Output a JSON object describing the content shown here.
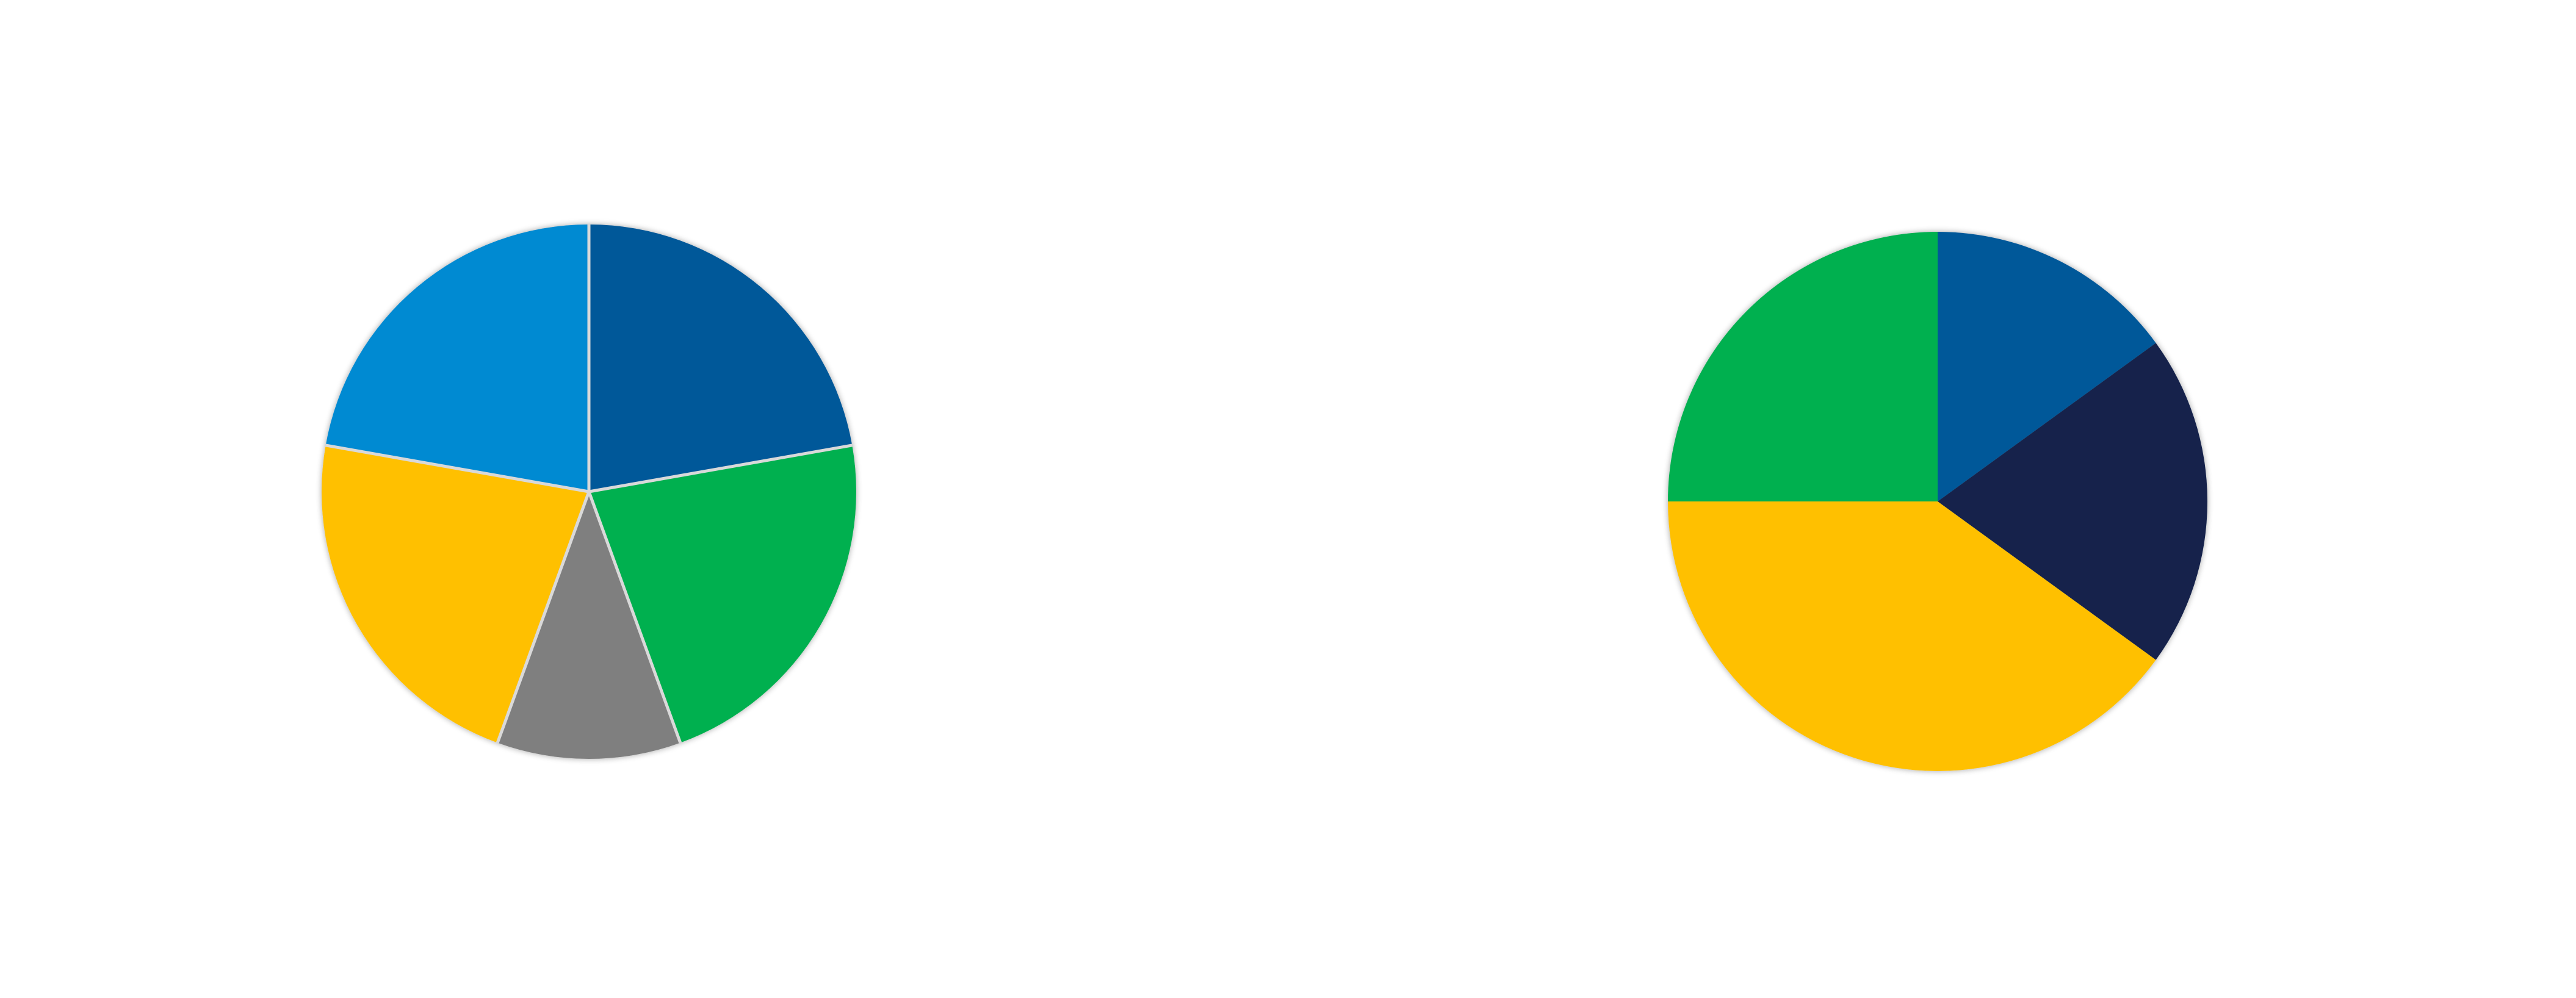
{
  "chart_data": [
    {
      "type": "pie",
      "start_angle_deg": 90,
      "direction": "clockwise",
      "slice_border": "#d9d9d9",
      "slices": [
        {
          "value": 20,
          "color": "#005899"
        },
        {
          "value": 20,
          "color": "#00b050"
        },
        {
          "value": 10,
          "color": "#7f7f7f"
        },
        {
          "value": 20,
          "color": "#ffc000"
        },
        {
          "value": 20,
          "color": "#008ad2"
        }
      ]
    },
    {
      "type": "pie",
      "start_angle_deg": 90,
      "direction": "clockwise",
      "slice_border": "none",
      "slices": [
        {
          "value": 15,
          "color": "#005899"
        },
        {
          "value": 20,
          "color": "#12234c"
        },
        {
          "value": 40,
          "color": "#ffc000"
        },
        {
          "value": 25,
          "color": "#00b050"
        }
      ]
    }
  ]
}
